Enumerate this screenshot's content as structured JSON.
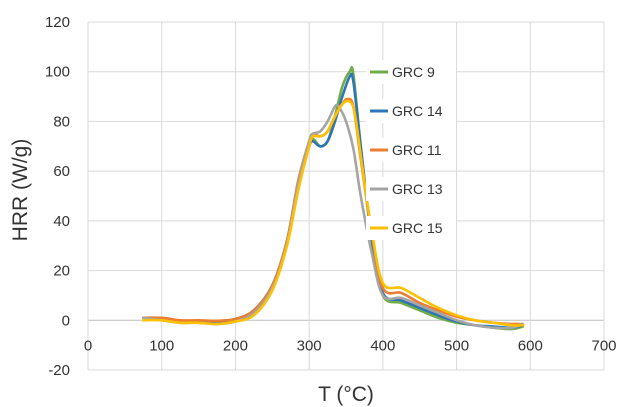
{
  "chart_data": {
    "type": "line",
    "title": "",
    "xlabel": "T (°C)",
    "ylabel": "HRR (W/g)",
    "xlim": [
      0,
      700
    ],
    "ylim": [
      -20,
      120
    ],
    "xticks": [
      0,
      100,
      200,
      300,
      400,
      500,
      600,
      700
    ],
    "yticks": [
      -20,
      0,
      20,
      40,
      60,
      80,
      100,
      120
    ],
    "grid": "vertical and horizontal",
    "legend": "upper-right inside plot",
    "series": [
      {
        "name": "GRC 9",
        "color": "#70ad47",
        "points": [
          [
            75,
            1
          ],
          [
            100,
            0.8
          ],
          [
            125,
            -0.5
          ],
          [
            150,
            -0.5
          ],
          [
            175,
            -0.3
          ],
          [
            200,
            0.5
          ],
          [
            225,
            4
          ],
          [
            250,
            14
          ],
          [
            270,
            32
          ],
          [
            285,
            55
          ],
          [
            300,
            70
          ],
          [
            305,
            73
          ],
          [
            315,
            70
          ],
          [
            325,
            72
          ],
          [
            335,
            82
          ],
          [
            345,
            94
          ],
          [
            355,
            100
          ],
          [
            360,
            99
          ],
          [
            370,
            70
          ],
          [
            385,
            32
          ],
          [
            400,
            10
          ],
          [
            425,
            7
          ],
          [
            450,
            4
          ],
          [
            475,
            1
          ],
          [
            500,
            -1
          ],
          [
            525,
            -2
          ],
          [
            550,
            -3
          ],
          [
            575,
            -3.5
          ],
          [
            590,
            -2.5
          ]
        ]
      },
      {
        "name": "GRC 14",
        "color": "#2e75b6",
        "points": [
          [
            75,
            1
          ],
          [
            100,
            0.5
          ],
          [
            125,
            -0.5
          ],
          [
            150,
            -0.5
          ],
          [
            175,
            -0.5
          ],
          [
            200,
            0.5
          ],
          [
            225,
            4
          ],
          [
            250,
            14
          ],
          [
            270,
            32
          ],
          [
            285,
            55
          ],
          [
            300,
            70
          ],
          [
            305,
            72
          ],
          [
            315,
            70
          ],
          [
            325,
            72
          ],
          [
            335,
            80
          ],
          [
            345,
            90
          ],
          [
            355,
            98
          ],
          [
            360,
            96
          ],
          [
            370,
            70
          ],
          [
            385,
            33
          ],
          [
            400,
            11
          ],
          [
            425,
            8
          ],
          [
            450,
            5
          ],
          [
            475,
            2
          ],
          [
            500,
            -0.5
          ],
          [
            525,
            -2
          ],
          [
            550,
            -2.5
          ],
          [
            575,
            -3
          ],
          [
            590,
            -2
          ]
        ]
      },
      {
        "name": "GRC 11",
        "color": "#ed7d31",
        "points": [
          [
            75,
            1
          ],
          [
            100,
            1
          ],
          [
            125,
            0
          ],
          [
            150,
            0
          ],
          [
            175,
            -0.2
          ],
          [
            200,
            0.5
          ],
          [
            225,
            4
          ],
          [
            250,
            14
          ],
          [
            270,
            32
          ],
          [
            285,
            56
          ],
          [
            300,
            72
          ],
          [
            305,
            75
          ],
          [
            315,
            74
          ],
          [
            325,
            76
          ],
          [
            335,
            82
          ],
          [
            345,
            87
          ],
          [
            352,
            89
          ],
          [
            360,
            86
          ],
          [
            370,
            65
          ],
          [
            385,
            35
          ],
          [
            400,
            13
          ],
          [
            425,
            11
          ],
          [
            450,
            7
          ],
          [
            475,
            4
          ],
          [
            500,
            1.5
          ],
          [
            525,
            0
          ],
          [
            550,
            -1
          ],
          [
            575,
            -1.5
          ],
          [
            590,
            -1.5
          ]
        ]
      },
      {
        "name": "GRC 13",
        "color": "#a5a5a5",
        "points": [
          [
            75,
            1
          ],
          [
            100,
            0
          ],
          [
            125,
            -1
          ],
          [
            150,
            -1
          ],
          [
            175,
            -1.5
          ],
          [
            200,
            -0.5
          ],
          [
            225,
            3
          ],
          [
            250,
            13
          ],
          [
            270,
            31
          ],
          [
            285,
            55
          ],
          [
            300,
            72
          ],
          [
            305,
            75
          ],
          [
            315,
            76
          ],
          [
            325,
            80
          ],
          [
            335,
            86
          ],
          [
            340,
            86
          ],
          [
            350,
            80
          ],
          [
            360,
            69
          ],
          [
            370,
            50
          ],
          [
            385,
            27
          ],
          [
            400,
            10
          ],
          [
            425,
            9
          ],
          [
            450,
            6
          ],
          [
            475,
            3
          ],
          [
            500,
            0
          ],
          [
            525,
            -2
          ],
          [
            550,
            -3
          ],
          [
            575,
            -3
          ],
          [
            590,
            -1.5
          ]
        ]
      },
      {
        "name": "GRC 15",
        "color": "#ffc000",
        "points": [
          [
            75,
            0
          ],
          [
            100,
            0
          ],
          [
            125,
            -1
          ],
          [
            150,
            -1
          ],
          [
            175,
            -1.5
          ],
          [
            200,
            -0.5
          ],
          [
            225,
            2
          ],
          [
            250,
            12
          ],
          [
            270,
            30
          ],
          [
            285,
            52
          ],
          [
            300,
            70
          ],
          [
            305,
            74
          ],
          [
            315,
            74
          ],
          [
            325,
            76
          ],
          [
            335,
            82
          ],
          [
            345,
            87
          ],
          [
            355,
            88
          ],
          [
            362,
            83
          ],
          [
            372,
            62
          ],
          [
            385,
            36
          ],
          [
            400,
            15
          ],
          [
            425,
            13
          ],
          [
            450,
            9
          ],
          [
            475,
            5
          ],
          [
            500,
            2
          ],
          [
            525,
            0
          ],
          [
            550,
            -1
          ],
          [
            575,
            -2
          ],
          [
            590,
            -2
          ]
        ]
      }
    ]
  }
}
